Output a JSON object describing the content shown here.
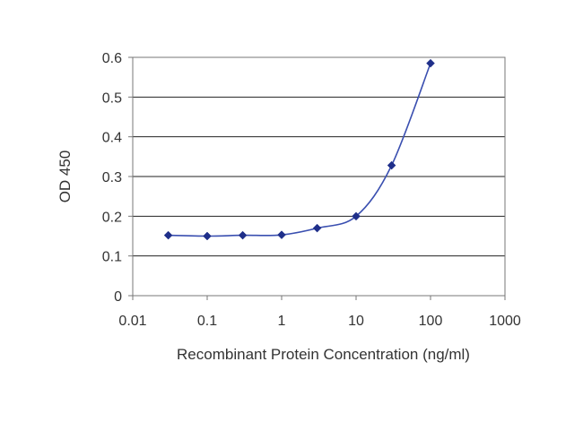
{
  "chart_data": {
    "type": "line",
    "title": "",
    "xlabel": "Recombinant Protein Concentration (ng/ml)",
    "ylabel": "OD 450",
    "x_scale": "log",
    "xlim": [
      0.01,
      1000
    ],
    "ylim": [
      0,
      0.6
    ],
    "x_ticks": [
      "0.01",
      "0.1",
      "1",
      "10",
      "100",
      "1000"
    ],
    "y_ticks": [
      "0",
      "0.1",
      "0.2",
      "0.3",
      "0.4",
      "0.5",
      "0.6"
    ],
    "grid": "horizontal",
    "legend": "none",
    "series": [
      {
        "x": [
          0.03,
          0.1,
          0.3,
          1,
          3,
          10,
          30,
          100
        ],
        "y": [
          0.152,
          0.15,
          0.152,
          0.153,
          0.17,
          0.2,
          0.328,
          0.585
        ]
      }
    ],
    "colors": {
      "line": "#3a4fb0",
      "marker": "#1f2f8a",
      "grid": "#222222",
      "frame": "#777777"
    }
  }
}
